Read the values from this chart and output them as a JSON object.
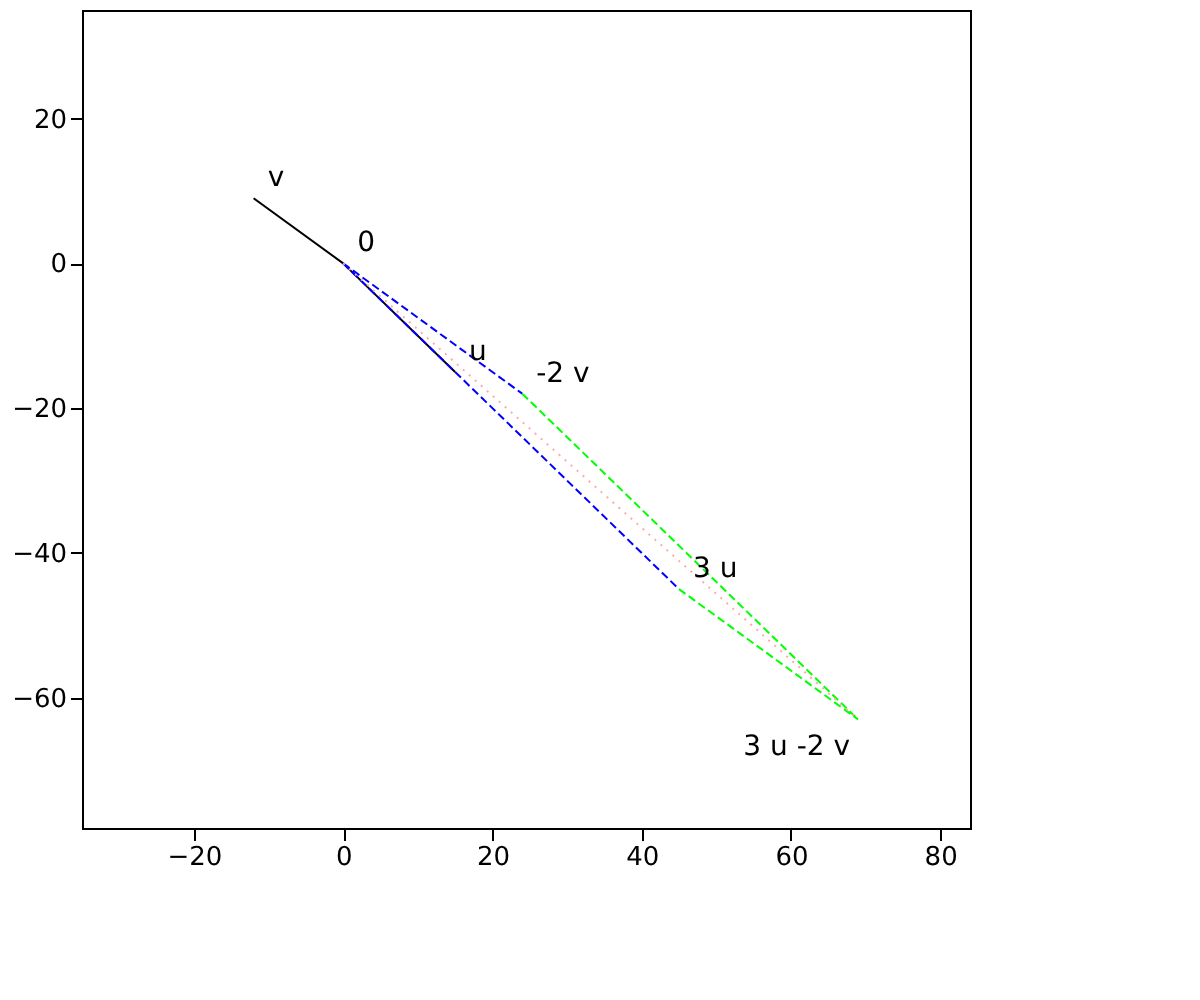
{
  "chart_data": {
    "type": "line",
    "xlim": [
      -35,
      84
    ],
    "ylim": [
      -78,
      35
    ],
    "xticks": [
      -20,
      0,
      20,
      40,
      60,
      80
    ],
    "yticks": [
      -60,
      -40,
      -20,
      0,
      20
    ],
    "grid": false,
    "marker": "none",
    "series": [
      {
        "color": "#000000",
        "line_style": "solid",
        "x": [
          -12,
          0,
          15
        ],
        "values": [
          9,
          0,
          -15
        ]
      },
      {
        "color": "#0000ff",
        "line_style": "dashed",
        "x": [
          0,
          24
        ],
        "values": [
          0,
          -18
        ]
      },
      {
        "color": "#0000ff",
        "line_style": "dashed",
        "x": [
          0,
          45
        ],
        "values": [
          0,
          -45
        ]
      },
      {
        "color": "#00ff00",
        "line_style": "dashed",
        "x": [
          24,
          69
        ],
        "values": [
          -18,
          -63
        ]
      },
      {
        "color": "#00ff00",
        "line_style": "dashed",
        "x": [
          45,
          69
        ],
        "values": [
          -45,
          -63
        ]
      },
      {
        "color": "#ffaaaa",
        "line_style": "dotted",
        "x": [
          0,
          69
        ],
        "values": [
          0,
          -63
        ]
      }
    ],
    "annotations": [
      {
        "text": "v",
        "x": -12,
        "y": 9
      },
      {
        "text": "0",
        "x": 0,
        "y": 0
      },
      {
        "text": "u",
        "x": 15,
        "y": -15
      },
      {
        "text": "-2 v",
        "x": 24,
        "y": -18
      },
      {
        "text": "3 u",
        "x": 45,
        "y": -45
      },
      {
        "text": "3 u -2 v",
        "x": 69,
        "y": -63
      }
    ]
  }
}
